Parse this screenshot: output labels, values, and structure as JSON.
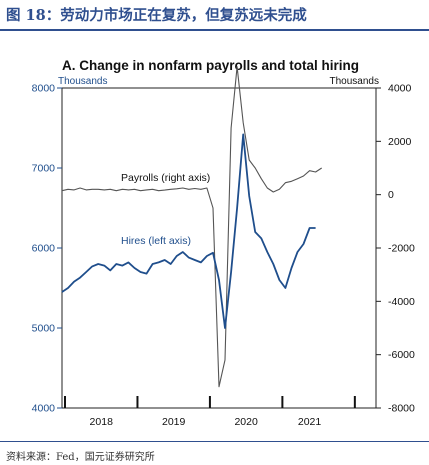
{
  "figure_title": "图 18：劳动力市场正在复苏，但复苏远未完成",
  "source_note": "资料来源：Fed，国元证券研究所",
  "chart_data": {
    "type": "line",
    "title": "A. Change in nonfarm payrolls and total hiring",
    "left_axis_unit": "Thousands",
    "right_axis_unit": "Thousands",
    "left_ylim": [
      4000,
      8000
    ],
    "left_ticks": [
      "4000",
      "5000",
      "6000",
      "7000",
      "8000"
    ],
    "right_ylim": [
      -8000,
      4000
    ],
    "right_ticks": [
      "-8000",
      "-6000",
      "-4000",
      "-2000",
      "0",
      "2000",
      "4000"
    ],
    "x_range": [
      0,
      52
    ],
    "x_tick_labels": [
      {
        "label": "2018",
        "x": 6
      },
      {
        "label": "2019",
        "x": 18
      },
      {
        "label": "2020",
        "x": 30
      },
      {
        "label": "2021",
        "x": 40.5
      }
    ],
    "year_boundaries": [
      0,
      12,
      24,
      36,
      48
    ],
    "grid": false,
    "legend": "inline labels",
    "series": [
      {
        "name": "Payrolls (right axis)",
        "axis": "right",
        "color": "#555555",
        "x": [
          0,
          1,
          2,
          3,
          4,
          5,
          6,
          7,
          8,
          9,
          10,
          11,
          12,
          13,
          14,
          15,
          16,
          17,
          18,
          19,
          20,
          21,
          22,
          23,
          24,
          25,
          26,
          27,
          28,
          29,
          30,
          31,
          32,
          33,
          34,
          35,
          36,
          37,
          38,
          39,
          40,
          41,
          42,
          43
        ],
        "values": [
          150,
          200,
          180,
          250,
          180,
          200,
          200,
          180,
          200,
          150,
          200,
          180,
          200,
          150,
          180,
          200,
          150,
          170,
          200,
          220,
          250,
          200,
          230,
          200,
          250,
          -500,
          -7200,
          -6200,
          2500,
          4800,
          2700,
          1300,
          1000,
          600,
          250,
          100,
          200,
          450,
          500,
          600,
          700,
          900,
          850,
          1000
        ]
      },
      {
        "name": "Hires (left axis)",
        "axis": "left",
        "color": "#1f4e8c",
        "x": [
          0,
          1,
          2,
          3,
          4,
          5,
          6,
          7,
          8,
          9,
          10,
          11,
          12,
          13,
          14,
          15,
          16,
          17,
          18,
          19,
          20,
          21,
          22,
          23,
          24,
          25,
          26,
          27,
          28,
          29,
          30,
          31,
          32,
          33,
          34,
          35,
          36,
          37,
          38,
          39,
          40,
          41,
          42
        ],
        "values": [
          5450,
          5500,
          5580,
          5630,
          5700,
          5770,
          5800,
          5780,
          5720,
          5800,
          5780,
          5820,
          5750,
          5700,
          5680,
          5800,
          5820,
          5850,
          5800,
          5900,
          5950,
          5880,
          5850,
          5820,
          5900,
          5940,
          5600,
          5000,
          5700,
          6500,
          7420,
          6650,
          6200,
          6120,
          5950,
          5800,
          5600,
          5500,
          5750,
          5950,
          6050,
          6250,
          6250
        ]
      }
    ]
  }
}
